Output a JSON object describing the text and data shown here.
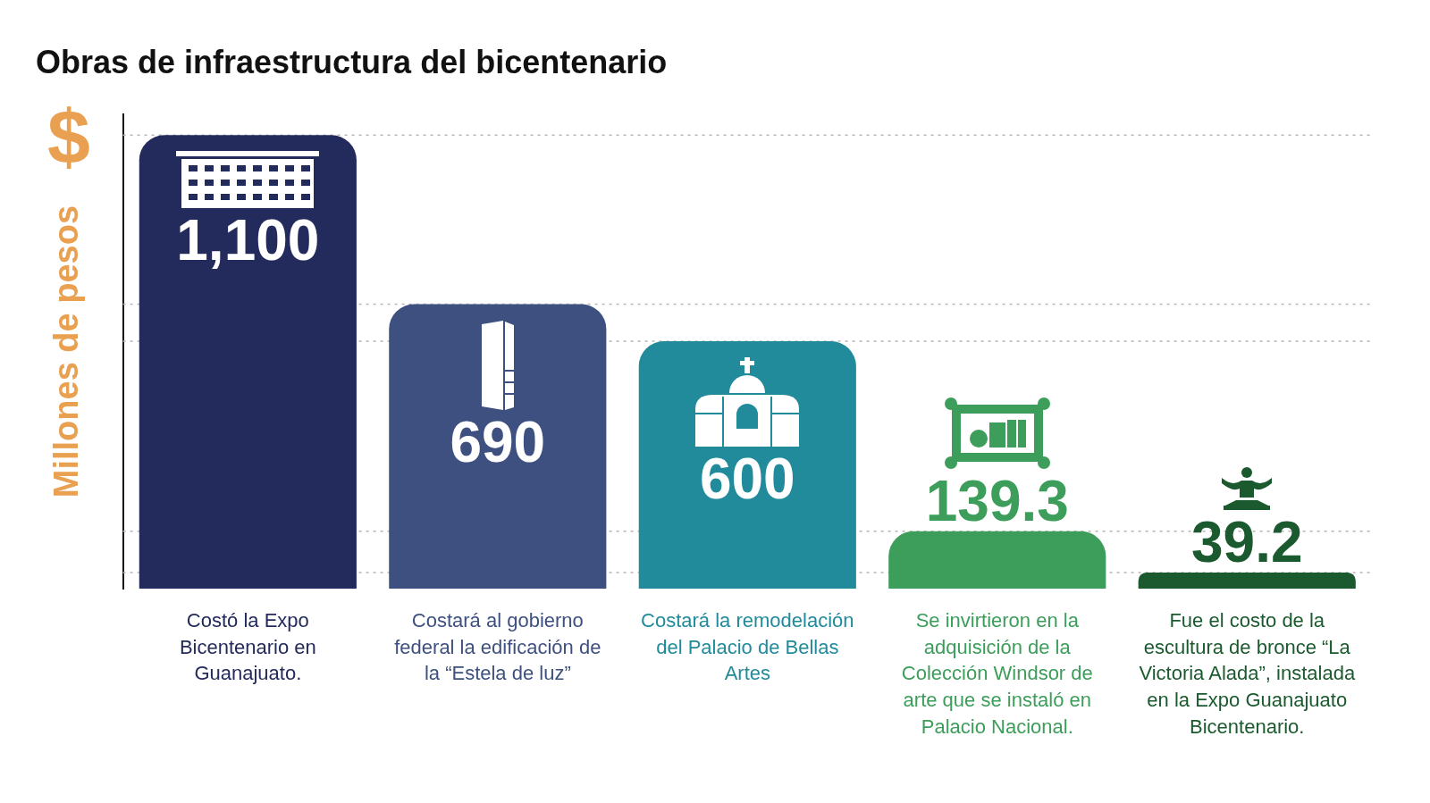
{
  "chart_data": {
    "type": "bar",
    "title": "Obras de infraestructura del bicentenario",
    "ylabel": "Millones de pesos",
    "categories": [
      "Costó la Expo Bicentenario en Guanajuato.",
      "Costará al gobierno federal la edificación de la “Estela de luz”",
      "Costará la remodelación del Palacio de Bellas Artes",
      "Se invirtieron en la adquisición de la Colección Windsor de arte que se instaló en Palacio Nacional.",
      "Fue el costo de la escultura de bronce “La Victoria Alada”, instalada en la Expo Guanajuato Bicentenario."
    ],
    "values": [
      1100,
      690,
      600,
      139.3,
      39.2
    ],
    "colors": [
      "#232a5c",
      "#3d5080",
      "#218b9b",
      "#3d9d5a",
      "#1a5a2e"
    ],
    "value_labels": [
      "1,100",
      "690",
      "600",
      "139.3",
      "39.2"
    ],
    "ylim": [
      0,
      1150
    ],
    "tick_labels": "x",
    "ref_lines": [
      {
        "axis": "y",
        "value": 1100,
        "color": "#b5b5b5",
        "line_style": "dotted"
      },
      {
        "axis": "y",
        "value": 690,
        "color": "#b5b5b5",
        "line_style": "dotted"
      },
      {
        "axis": "y",
        "value": 600,
        "color": "#b5b5b5",
        "line_style": "dotted"
      },
      {
        "axis": "y",
        "value": 139.3,
        "color": "#b5b5b5",
        "line_style": "dotted"
      },
      {
        "axis": "y",
        "value": 39.2,
        "color": "#b5b5b5",
        "line_style": "dotted"
      }
    ],
    "annotations": [
      "$"
    ]
  }
}
